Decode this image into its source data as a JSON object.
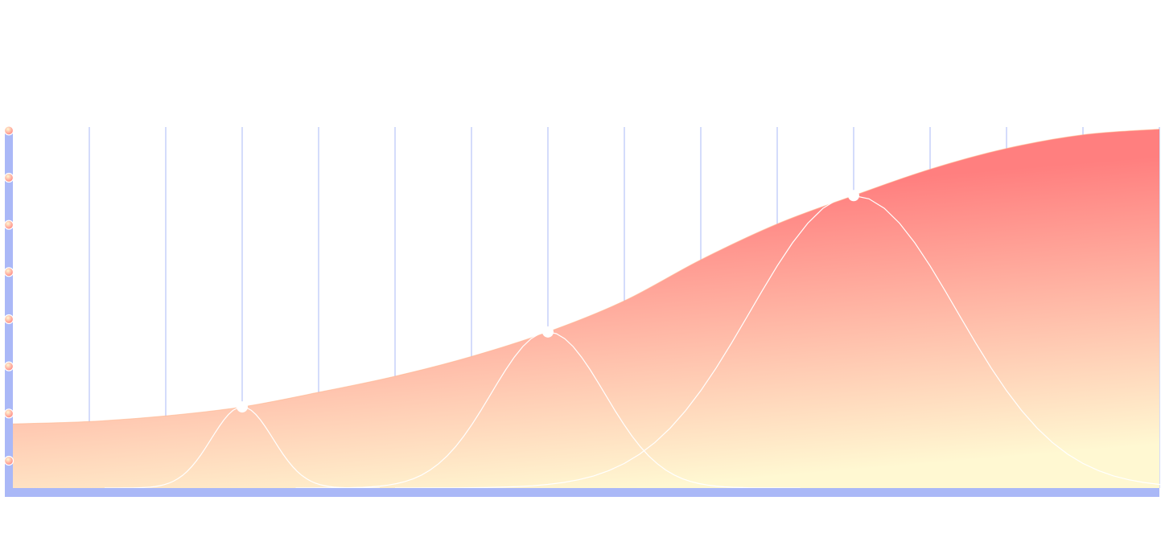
{
  "chart_data": {
    "type": "area",
    "x": [
      0,
      1,
      2,
      3,
      4,
      5,
      6,
      7,
      8,
      9,
      10,
      11,
      12,
      13,
      14,
      15
    ],
    "values": [
      0.78,
      0.83,
      0.95,
      1.14,
      1.45,
      1.79,
      2.21,
      2.73,
      3.39,
      4.26,
      5.02,
      5.62,
      6.18,
      6.62,
      6.91,
      7.03
    ],
    "color": "#ff7f7f",
    "color_low": "#fff8d2",
    "peaks": {
      "x": [
        3,
        7,
        11
      ],
      "values": [
        1.14,
        2.73,
        5.62
      ],
      "spread": [
        0.6,
        1.1,
        2.0
      ],
      "color": "#ffffff"
    },
    "xlim": [
      0,
      15
    ],
    "xticks": [
      1,
      2,
      3,
      4,
      5,
      6,
      7,
      8,
      9,
      10,
      11,
      12,
      13,
      14,
      15
    ],
    "ylim": [
      -0.58,
      7.04
    ],
    "yticks": [
      0,
      1,
      2,
      3,
      4,
      5,
      6,
      7
    ],
    "grid": true,
    "axis_color": "#aab8f7"
  }
}
